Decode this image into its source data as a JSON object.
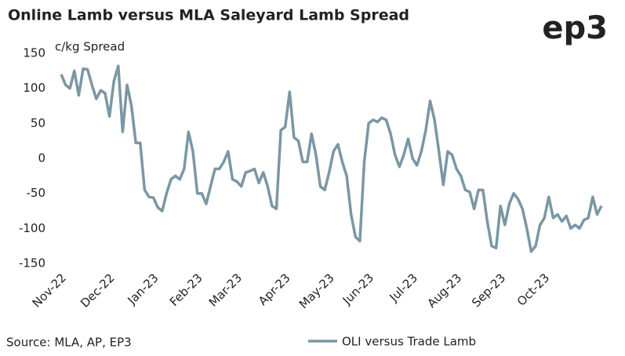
{
  "logo": "ep3",
  "chart_data": {
    "type": "line",
    "title": "Online Lamb versus MLA Saleyard Lamb Spread",
    "y_label": "c/kg Spread",
    "source": "Source: MLA, AP, EP3",
    "categories": [
      "Nov-22",
      null,
      null,
      null,
      null,
      null,
      null,
      null,
      null,
      null,
      null,
      "Dec-22",
      null,
      null,
      null,
      null,
      null,
      null,
      null,
      null,
      null,
      "Jan-23",
      null,
      null,
      null,
      null,
      null,
      null,
      null,
      null,
      null,
      "Feb-23",
      null,
      null,
      null,
      null,
      null,
      null,
      null,
      null,
      "Mar-23",
      null,
      null,
      null,
      null,
      null,
      null,
      null,
      null,
      null,
      null,
      "Apr-23",
      null,
      null,
      null,
      null,
      null,
      null,
      null,
      null,
      null,
      "May-23",
      null,
      null,
      null,
      null,
      null,
      null,
      null,
      null,
      "Jun-23",
      null,
      null,
      null,
      null,
      null,
      null,
      null,
      null,
      null,
      "Jul-23",
      null,
      null,
      null,
      null,
      null,
      null,
      null,
      null,
      null,
      "Aug-23",
      null,
      null,
      null,
      null,
      null,
      null,
      null,
      null,
      null,
      "Sep-23",
      null,
      null,
      null,
      null,
      null,
      null,
      null,
      null,
      null,
      "Oct-23",
      null,
      null,
      null,
      null,
      null,
      null,
      null,
      null,
      null,
      null,
      null,
      null,
      null
    ],
    "series": [
      {
        "name": "OLI versus Trade Lamb",
        "color": "#7b97a4",
        "values": [
          120,
          105,
          100,
          125,
          90,
          128,
          127,
          105,
          85,
          97,
          93,
          60,
          110,
          132,
          38,
          105,
          75,
          22,
          22,
          -45,
          -55,
          -56,
          -70,
          -75,
          -50,
          -30,
          -25,
          -30,
          -15,
          38,
          10,
          -50,
          -50,
          -65,
          -40,
          -15,
          -15,
          -5,
          10,
          -30,
          -33,
          -40,
          -20,
          -18,
          -15,
          -35,
          -20,
          -40,
          -68,
          -72,
          40,
          45,
          95,
          30,
          25,
          -5,
          -5,
          35,
          5,
          -40,
          -45,
          -20,
          10,
          20,
          -5,
          -25,
          -80,
          -112,
          -118,
          -5,
          50,
          55,
          52,
          58,
          55,
          35,
          5,
          -12,
          5,
          28,
          0,
          -10,
          10,
          40,
          82,
          55,
          10,
          -38,
          10,
          5,
          -15,
          -25,
          -45,
          -48,
          -72,
          -45,
          -45,
          -90,
          -125,
          -128,
          -68,
          -95,
          -65,
          -50,
          -58,
          -72,
          -100,
          -133,
          -125,
          -95,
          -85,
          -55,
          -85,
          -80,
          -90,
          -82,
          -100,
          -95,
          -100,
          -88,
          -85,
          -55,
          -80,
          -68
        ]
      }
    ],
    "ylim": [
      -150,
      150
    ],
    "yticks": [
      -150,
      -100,
      -50,
      0,
      50,
      100,
      150
    ],
    "grid": false
  }
}
